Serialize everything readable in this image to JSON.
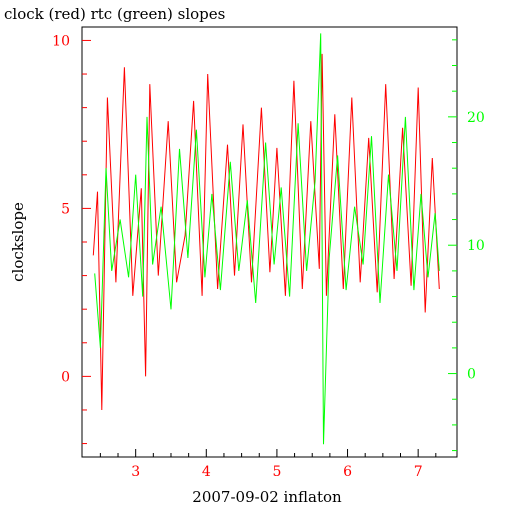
{
  "chart_data": {
    "type": "line",
    "title": "clock (red) rtc (green) slopes",
    "xlabel": "2007-09-02 inflaton",
    "ylabel": "clockslope",
    "xlim": [
      2.24,
      7.55
    ],
    "x_ticks": [
      "3",
      "4",
      "5",
      "6",
      "7"
    ],
    "left_axis": {
      "ylim": [
        -2.4,
        10.4
      ],
      "ticks": [
        "0",
        "5",
        "10"
      ],
      "color": "#ff0000"
    },
    "right_axis": {
      "ylim": [
        -6.5,
        27.0
      ],
      "ticks": [
        "0",
        "10",
        "20"
      ],
      "color": "#00ff00"
    },
    "grid": false,
    "series": [
      {
        "name": "clock",
        "axis": "left",
        "color": "#ff0000",
        "x": [
          2.4,
          2.46,
          2.52,
          2.6,
          2.72,
          2.84,
          2.96,
          3.08,
          3.14,
          3.2,
          3.32,
          3.46,
          3.58,
          3.7,
          3.82,
          3.94,
          4.02,
          4.16,
          4.3,
          4.4,
          4.52,
          4.64,
          4.78,
          4.9,
          5.0,
          5.12,
          5.24,
          5.36,
          5.48,
          5.6,
          5.64,
          5.7,
          5.82,
          5.94,
          6.06,
          6.18,
          6.3,
          6.42,
          6.54,
          6.66,
          6.78,
          6.9,
          7.0,
          7.1,
          7.2,
          7.3
        ],
        "values": [
          3.6,
          5.5,
          -1.0,
          8.3,
          2.8,
          9.2,
          2.4,
          5.6,
          0.0,
          8.7,
          3.0,
          7.6,
          2.8,
          4.2,
          8.2,
          2.4,
          9.0,
          2.6,
          6.9,
          3.0,
          7.5,
          2.8,
          8.0,
          3.1,
          6.8,
          2.4,
          8.8,
          2.6,
          7.6,
          3.2,
          9.6,
          2.4,
          7.8,
          2.6,
          8.3,
          2.8,
          7.1,
          2.5,
          8.7,
          2.9,
          7.4,
          2.7,
          8.6,
          1.9,
          6.5,
          2.6
        ]
      },
      {
        "name": "rtc",
        "axis": "right",
        "color": "#00ff00",
        "x": [
          2.42,
          2.5,
          2.58,
          2.66,
          2.78,
          2.9,
          3.0,
          3.1,
          3.16,
          3.24,
          3.36,
          3.5,
          3.62,
          3.74,
          3.86,
          3.98,
          4.08,
          4.2,
          4.34,
          4.46,
          4.58,
          4.7,
          4.84,
          4.96,
          5.06,
          5.18,
          5.3,
          5.42,
          5.54,
          5.62,
          5.66,
          5.74,
          5.86,
          5.98,
          6.1,
          6.22,
          6.34,
          6.46,
          6.58,
          6.7,
          6.82,
          6.94,
          7.04,
          7.14,
          7.24,
          7.3
        ],
        "values": [
          7.8,
          2.0,
          16.0,
          8.0,
          12.0,
          7.5,
          15.5,
          6.0,
          20.0,
          8.5,
          13.0,
          5.0,
          17.5,
          9.0,
          19.0,
          7.5,
          14.0,
          6.5,
          16.5,
          8.0,
          13.5,
          5.5,
          18.0,
          8.5,
          14.5,
          6.0,
          19.5,
          8.0,
          15.0,
          26.5,
          -5.5,
          9.0,
          17.0,
          6.5,
          13.0,
          8.5,
          18.5,
          5.5,
          15.5,
          8.0,
          20.0,
          6.5,
          14.0,
          7.5,
          12.5,
          8.0
        ]
      }
    ]
  }
}
